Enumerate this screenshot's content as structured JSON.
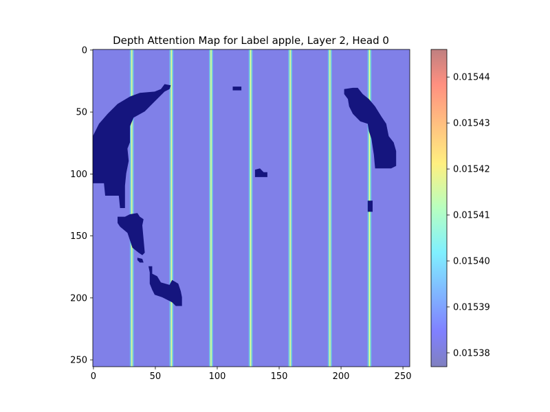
{
  "chart_data": {
    "type": "heatmap",
    "title": "Depth Attention Map for Label apple, Layer 2, Head 0",
    "xlabel": "",
    "ylabel": "",
    "xlim": [
      0,
      256
    ],
    "ylim": [
      256,
      0
    ],
    "x_ticks": [
      0,
      50,
      100,
      150,
      200,
      250
    ],
    "y_ticks": [
      0,
      50,
      100,
      150,
      200,
      250
    ],
    "colormap": "jet",
    "alpha": 0.5,
    "background_color": "#8080e8",
    "mask_color": "#15157e",
    "colorbar": {
      "min": 0.015377,
      "max": 0.015446,
      "ticks": [
        "0.01538",
        "0.01539",
        "0.01540",
        "0.01541",
        "0.01542",
        "0.01543",
        "0.01544"
      ],
      "tick_values": [
        0.01538,
        0.01539,
        0.0154,
        0.01541,
        0.01542,
        0.01543,
        0.01544
      ]
    },
    "column_lines_x": [
      31,
      63,
      95,
      127,
      159,
      191,
      223
    ],
    "regions": [
      {
        "label": "left-arc-upper",
        "points": [
          [
            0,
            70
          ],
          [
            5,
            60
          ],
          [
            12,
            52
          ],
          [
            20,
            44
          ],
          [
            30,
            38
          ],
          [
            38,
            35
          ],
          [
            50,
            34
          ],
          [
            55,
            32
          ],
          [
            58,
            28
          ],
          [
            63,
            29
          ],
          [
            62,
            32
          ],
          [
            58,
            34
          ],
          [
            50,
            42
          ],
          [
            42,
            50
          ],
          [
            33,
            55
          ],
          [
            30,
            62
          ],
          [
            30,
            75
          ],
          [
            28,
            80
          ],
          [
            29,
            90
          ],
          [
            27,
            100
          ],
          [
            26,
            110
          ],
          [
            26,
            128
          ],
          [
            22,
            128
          ],
          [
            21,
            118
          ],
          [
            10,
            118
          ],
          [
            9,
            108
          ],
          [
            0,
            108
          ]
        ]
      },
      {
        "label": "left-arc-lower-1",
        "points": [
          [
            20,
            135
          ],
          [
            26,
            135
          ],
          [
            30,
            133
          ],
          [
            36,
            132
          ],
          [
            38,
            135
          ],
          [
            41,
            137
          ],
          [
            40,
            142
          ],
          [
            41,
            153
          ],
          [
            42,
            164
          ],
          [
            40,
            166
          ],
          [
            37,
            164
          ],
          [
            32,
            160
          ],
          [
            30,
            154
          ],
          [
            28,
            148
          ],
          [
            22,
            143
          ],
          [
            20,
            140
          ]
        ]
      },
      {
        "label": "left-arc-lower-2",
        "points": [
          [
            36,
            168
          ],
          [
            40,
            169
          ],
          [
            41,
            172
          ],
          [
            38,
            172
          ],
          [
            36,
            170
          ]
        ]
      },
      {
        "label": "left-arc-lower-3",
        "points": [
          [
            45,
            175
          ],
          [
            48,
            175
          ],
          [
            48,
            181
          ],
          [
            52,
            183
          ],
          [
            55,
            188
          ],
          [
            62,
            190
          ],
          [
            64,
            186
          ],
          [
            69,
            189
          ],
          [
            71,
            195
          ],
          [
            72,
            200
          ],
          [
            72,
            207
          ],
          [
            67,
            207
          ],
          [
            64,
            204
          ],
          [
            60,
            202
          ],
          [
            56,
            200
          ],
          [
            50,
            198
          ],
          [
            48,
            194
          ],
          [
            46,
            189
          ],
          [
            46,
            180
          ]
        ]
      },
      {
        "label": "dot-1",
        "points": [
          [
            113,
            30
          ],
          [
            120,
            30
          ],
          [
            120,
            33
          ],
          [
            113,
            33
          ]
        ]
      },
      {
        "label": "dot-2",
        "points": [
          [
            131,
            97
          ],
          [
            135,
            96
          ],
          [
            138,
            99
          ],
          [
            141,
            99
          ],
          [
            141,
            103
          ],
          [
            131,
            103
          ]
        ]
      },
      {
        "label": "right-arc",
        "points": [
          [
            203,
            32
          ],
          [
            210,
            31
          ],
          [
            214,
            31
          ],
          [
            218,
            36
          ],
          [
            223,
            40
          ],
          [
            228,
            46
          ],
          [
            233,
            54
          ],
          [
            237,
            60
          ],
          [
            239,
            70
          ],
          [
            243,
            75
          ],
          [
            245,
            82
          ],
          [
            245,
            94
          ],
          [
            241,
            96
          ],
          [
            228,
            96
          ],
          [
            227,
            85
          ],
          [
            225,
            72
          ],
          [
            223,
            66
          ],
          [
            222,
            60
          ],
          [
            216,
            58
          ],
          [
            210,
            52
          ],
          [
            207,
            46
          ],
          [
            206,
            40
          ],
          [
            203,
            36
          ]
        ]
      },
      {
        "label": "right-small",
        "points": [
          [
            222,
            122
          ],
          [
            226,
            122
          ],
          [
            226,
            131
          ],
          [
            222,
            131
          ]
        ]
      }
    ]
  }
}
